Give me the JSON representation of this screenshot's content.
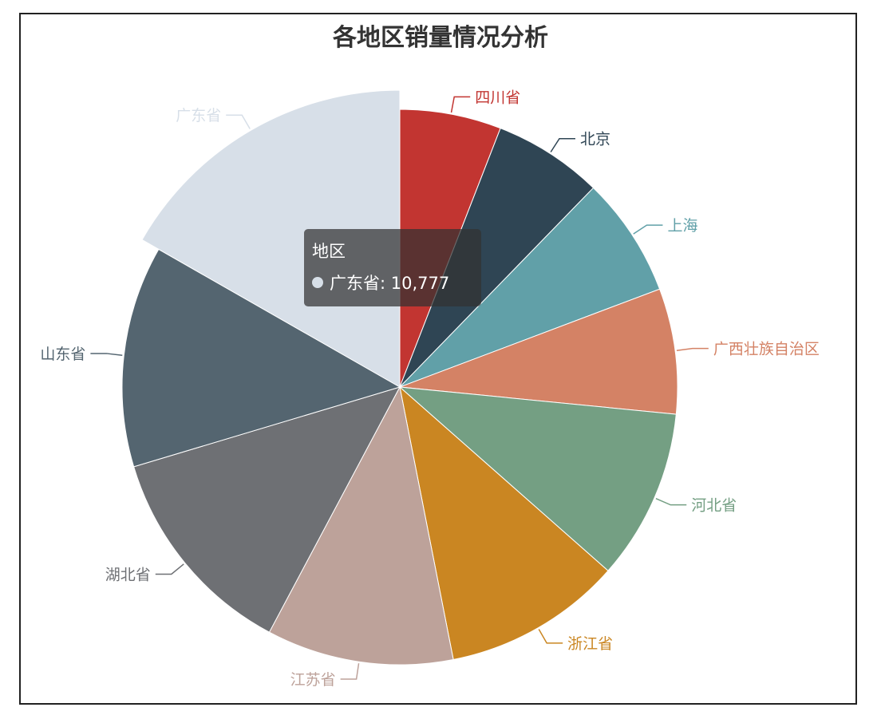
{
  "chart_data": {
    "type": "pie",
    "title": "各地区销量情况分析",
    "series_name": "地区",
    "categories": [
      "四川省",
      "北京",
      "上海",
      "广西壮族自治区",
      "河北省",
      "浙江省",
      "江苏省",
      "湖北省",
      "山东省",
      "广东省"
    ],
    "values": [
      3800,
      4100,
      4500,
      4700,
      6400,
      6700,
      7000,
      8100,
      8300,
      10777
    ],
    "colors": [
      "#c23531",
      "#2f4554",
      "#61a0a8",
      "#d48265",
      "#749f83",
      "#ca8622",
      "#bda29a",
      "#6e7074",
      "#546570",
      "#d7dfe8"
    ],
    "highlighted": "广东省"
  },
  "tooltip": {
    "title": "地区",
    "label": "广东省",
    "value": "10,777",
    "text": "广东省: 10,777"
  }
}
